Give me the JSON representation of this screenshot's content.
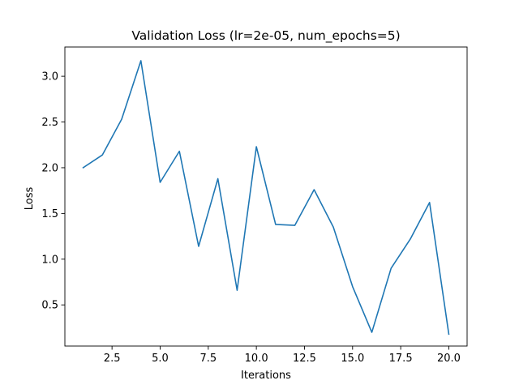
{
  "chart_data": {
    "type": "line",
    "title": "Validation Loss (lr=2e-05, num_epochs=5)",
    "xlabel": "Iterations",
    "ylabel": "Loss",
    "xlim": [
      0.05,
      20.95
    ],
    "ylim": [
      0.05,
      3.32
    ],
    "x_ticks": [
      2.5,
      5.0,
      7.5,
      10.0,
      12.5,
      15.0,
      17.5,
      20.0
    ],
    "x_tick_labels": [
      "2.5",
      "5.0",
      "7.5",
      "10.0",
      "12.5",
      "15.0",
      "17.5",
      "20.0"
    ],
    "y_ticks": [
      0.5,
      1.0,
      1.5,
      2.0,
      2.5,
      3.0
    ],
    "y_tick_labels": [
      "0.5",
      "1.0",
      "1.5",
      "2.0",
      "2.5",
      "3.0"
    ],
    "grid": false,
    "legend": "none",
    "series": [
      {
        "color": "#1f77b4",
        "x": [
          1,
          2,
          3,
          4,
          5,
          6,
          7,
          8,
          9,
          10,
          11,
          12,
          13,
          14,
          15,
          16,
          17,
          18,
          19,
          20
        ],
        "values": [
          2.0,
          2.14,
          2.53,
          3.17,
          1.84,
          2.18,
          1.14,
          1.88,
          0.66,
          2.23,
          1.38,
          1.37,
          1.76,
          1.35,
          0.7,
          0.2,
          0.9,
          1.22,
          1.62,
          0.18
        ]
      }
    ]
  }
}
